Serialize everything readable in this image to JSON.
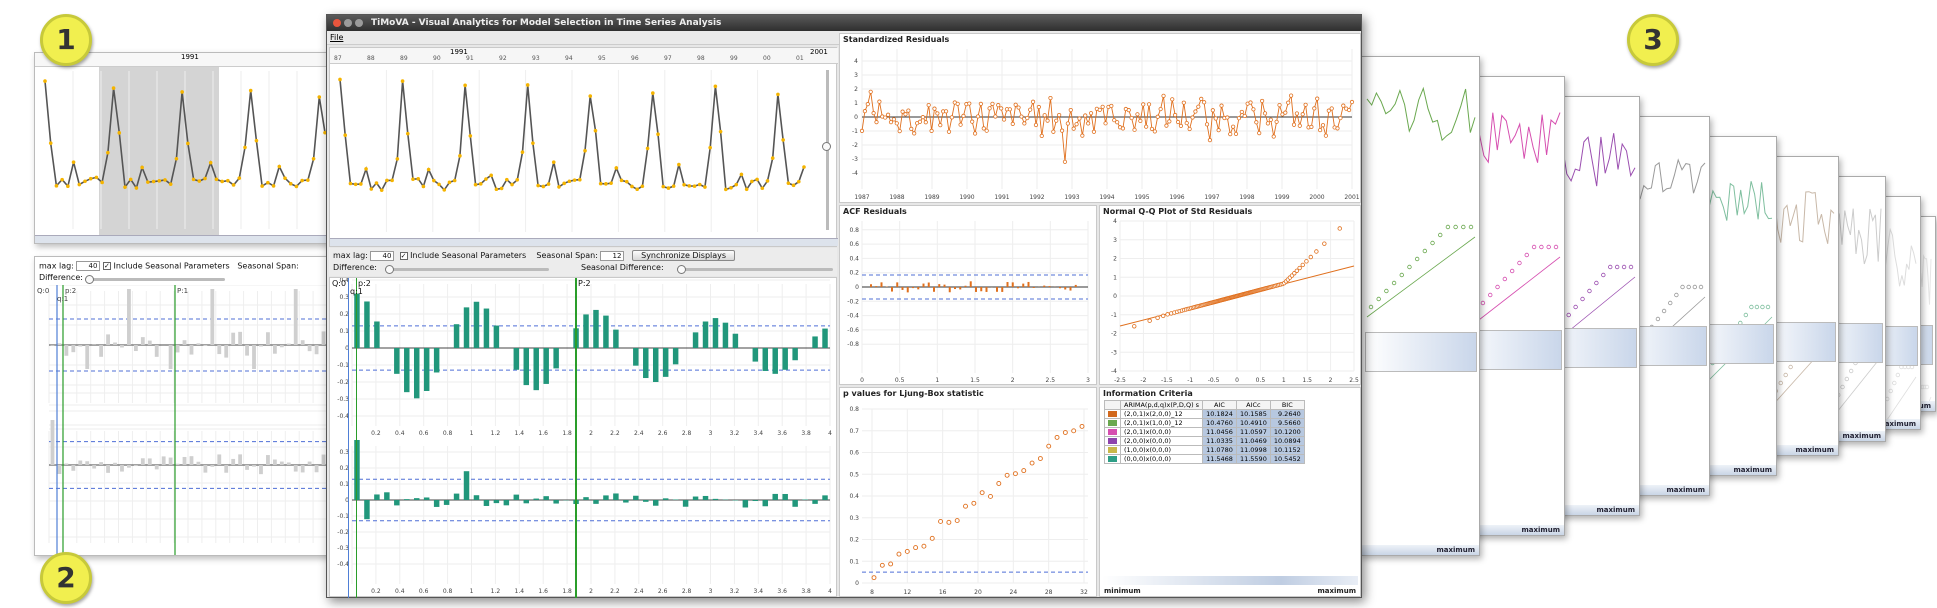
{
  "badges": [
    "1",
    "2",
    "3"
  ],
  "window": {
    "title": "TiMoVA - Visual Analytics for Model Selection in Time Series Analysis",
    "menu_file": "File",
    "years_top": [
      "1991",
      "2001"
    ],
    "years_small": [
      "87",
      "88",
      "89",
      "90",
      "91",
      "92",
      "93",
      "94",
      "95",
      "96",
      "97",
      "98",
      "99",
      "00",
      "01"
    ]
  },
  "controls": {
    "max_lag_label": "max lag:",
    "max_lag_value": "40",
    "include_seasonal_label": "Include Seasonal Parameters",
    "seasonal_span_label": "Seasonal Span:",
    "seasonal_span_value": "12",
    "sync_button": "Synchronize Displays",
    "difference_label": "Difference:",
    "seasonal_difference_label": "Seasonal Difference:"
  },
  "acf_pacf": {
    "markers": [
      "Q:0",
      "p:2",
      "q:1",
      "P:2"
    ],
    "x_ticks": [
      "0.2",
      "0.4",
      "0.6",
      "0.8",
      "1",
      "1.2",
      "1.4",
      "1.6",
      "1.8",
      "2",
      "2.2",
      "2.4",
      "2.6",
      "2.8",
      "3",
      "3.2",
      "3.4",
      "3.6",
      "3.8",
      "4"
    ],
    "y_ticks": [
      "0.4",
      "0.3",
      "0.2",
      "0.1",
      "0",
      "-0.1",
      "-0.2",
      "-0.3",
      "-0.4"
    ]
  },
  "left_panel": {
    "year": "1991",
    "max_lag_value": "40",
    "markers": [
      "Q:0",
      "p:2",
      "q:1",
      "P:1"
    ]
  },
  "std_residuals": {
    "title": "Standardized Residuals",
    "x_ticks": [
      "1987",
      "1988",
      "1989",
      "1990",
      "1991",
      "1992",
      "1993",
      "1994",
      "1995",
      "1996",
      "1997",
      "1998",
      "1999",
      "2000",
      "2001"
    ],
    "y_ticks": [
      "4",
      "3",
      "2",
      "1",
      "0",
      "-1",
      "-2",
      "-3",
      "-4"
    ]
  },
  "acf_residuals": {
    "title": "ACF Residuals",
    "x_ticks": [
      "0",
      "0.5",
      "1",
      "1.5",
      "2",
      "2.5",
      "3"
    ],
    "y_ticks": [
      "0.8",
      "0.6",
      "0.4",
      "0.2",
      "0",
      "-0.2",
      "-0.4",
      "-0.6",
      "-0.8"
    ]
  },
  "qq_plot": {
    "title": "Normal Q-Q Plot of Std Residuals",
    "x_ticks": [
      "-2.5",
      "-2",
      "-1.5",
      "-1",
      "-0.5",
      "0",
      "0.5",
      "1",
      "1.5",
      "2",
      "2.5"
    ],
    "y_ticks": [
      "4",
      "3",
      "2",
      "1",
      "0",
      "-1",
      "-2",
      "-3",
      "-4"
    ]
  },
  "ljung_box": {
    "title": "p values for Ljung-Box statistic",
    "x_ticks": [
      "8",
      "12",
      "16",
      "20",
      "24",
      "28",
      "32"
    ],
    "y_ticks": [
      "0.8",
      "0.7",
      "0.6",
      "0.5",
      "0.4",
      "0.3",
      "0.2",
      "0.1",
      "0"
    ]
  },
  "info_criteria": {
    "title": "Information Criteria",
    "columns": [
      "ARIMA(p,d,q)x(P,D,Q) s",
      "AIC",
      "AICc",
      "BIC"
    ],
    "rows": [
      {
        "color": "#d2691e",
        "model": "(2,0,1)x(2,0,0)_12",
        "aic": "10.1824",
        "aicc": "10.1585",
        "bic": "9.2640"
      },
      {
        "color": "#6aa84f",
        "model": "(2,0,1)x(1,0,0)_12",
        "aic": "10.4760",
        "aicc": "10.4910",
        "bic": "9.5660"
      },
      {
        "color": "#d64fb0",
        "model": "(2,0,1)x(0,0,0)",
        "aic": "11.0456",
        "aicc": "11.0597",
        "bic": "10.1200"
      },
      {
        "color": "#8e44ad",
        "model": "(2,0,0)x(0,0,0)",
        "aic": "11.0335",
        "aicc": "11.0469",
        "bic": "10.0894"
      },
      {
        "color": "#c9b84a",
        "model": "(1,0,0)x(0,0,0)",
        "aic": "11.0780",
        "aicc": "11.0998",
        "bic": "10.1152"
      },
      {
        "color": "#2e9e86",
        "model": "(0,0,0)x(0,0,0)",
        "aic": "11.5468",
        "aicc": "11.5590",
        "bic": "10.5452"
      }
    ],
    "legend_min": "minimum",
    "legend_max": "maximum"
  },
  "stack": {
    "footer_label": "maximum"
  },
  "colors": {
    "series_line": "#555555",
    "series_point": "#f5b400",
    "teal_bar": "#21977b",
    "resid_orange": "#e0701e",
    "selection_green": "#2a9d2a",
    "conf_band": "#4f6fd6"
  }
}
